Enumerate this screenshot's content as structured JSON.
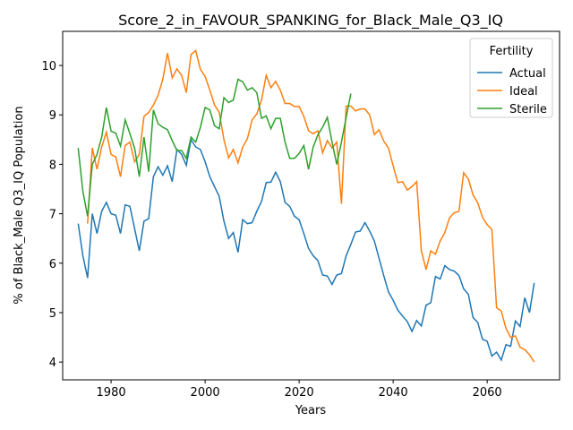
{
  "chart_data": {
    "type": "line",
    "title": "Score_2_in_FAVOUR_SPANKING_for_Black_Male_Q3_IQ",
    "xlabel": "Years",
    "ylabel": "% of Black_Male Q3_IQ Population",
    "legend_title": "Fertility",
    "legend": "upper right",
    "grid": false,
    "x": [
      1973,
      1974,
      1975,
      1976,
      1977,
      1978,
      1979,
      1980,
      1981,
      1982,
      1983,
      1984,
      1985,
      1986,
      1987,
      1988,
      1989,
      1990,
      1991,
      1992,
      1993,
      1994,
      1995,
      1996,
      1997,
      1998,
      1999,
      2000,
      2001,
      2002,
      2003,
      2004,
      2005,
      2006,
      2007,
      2008,
      2009,
      2010,
      2011,
      2012,
      2013,
      2014,
      2015,
      2016,
      2017,
      2018,
      2019,
      2020,
      2021,
      2022,
      2023,
      2024,
      2025,
      2026,
      2027,
      2028,
      2029,
      2030,
      2031,
      2032,
      2033,
      2034,
      2035,
      2036,
      2037,
      2038,
      2039,
      2040,
      2041,
      2042,
      2043,
      2044,
      2045,
      2046,
      2047,
      2048,
      2049,
      2050,
      2051,
      2052,
      2053,
      2054,
      2055,
      2056,
      2057,
      2058,
      2059,
      2060,
      2061,
      2062,
      2063,
      2064,
      2065,
      2066,
      2067,
      2068,
      2069,
      2070
    ],
    "series": [
      {
        "name": "Actual",
        "color": "#1f77b4",
        "values": [
          6.8,
          6.15,
          5.7,
          7.0,
          6.6,
          7.05,
          7.23,
          7.0,
          6.97,
          6.6,
          7.18,
          7.15,
          6.7,
          6.25,
          6.85,
          6.9,
          7.75,
          7.95,
          7.78,
          7.97,
          7.65,
          8.3,
          8.2,
          7.98,
          8.5,
          8.35,
          8.3,
          8.05,
          7.75,
          7.55,
          7.35,
          6.85,
          6.5,
          6.62,
          6.22,
          6.88,
          6.8,
          6.82,
          7.05,
          7.25,
          7.63,
          7.64,
          7.84,
          7.65,
          7.23,
          7.15,
          6.95,
          6.88,
          6.6,
          6.3,
          6.15,
          6.05,
          5.76,
          5.74,
          5.57,
          5.76,
          5.79,
          6.15,
          6.38,
          6.63,
          6.65,
          6.82,
          6.65,
          6.45,
          6.1,
          5.75,
          5.42,
          5.25,
          5.05,
          4.93,
          4.82,
          4.62,
          4.84,
          4.73,
          5.15,
          5.2,
          5.73,
          5.68,
          5.95,
          5.87,
          5.84,
          5.75,
          5.48,
          5.37,
          4.9,
          4.8,
          4.46,
          4.42,
          4.12,
          4.2,
          4.04,
          4.35,
          4.32,
          4.83,
          4.72,
          5.3,
          5.0,
          5.6
        ]
      },
      {
        "name": "Ideal",
        "color": "#ff7f0e",
        "values": [
          null,
          null,
          6.8,
          8.33,
          7.9,
          8.35,
          8.65,
          8.2,
          8.15,
          7.75,
          8.38,
          8.45,
          8.05,
          8.2,
          8.97,
          9.05,
          9.2,
          9.4,
          9.72,
          10.25,
          9.75,
          9.93,
          9.8,
          9.45,
          10.22,
          10.3,
          9.92,
          9.78,
          9.5,
          9.2,
          9.05,
          8.5,
          8.13,
          8.3,
          8.03,
          8.35,
          8.52,
          8.9,
          9.02,
          9.3,
          9.8,
          9.55,
          9.68,
          9.5,
          9.23,
          9.23,
          9.17,
          9.17,
          8.97,
          8.68,
          8.62,
          8.68,
          8.23,
          8.48,
          8.33,
          8.45,
          7.2,
          9.18,
          9.18,
          9.08,
          9.12,
          9.12,
          9.0,
          8.6,
          8.7,
          8.47,
          8.33,
          7.97,
          7.63,
          7.65,
          7.48,
          7.55,
          7.65,
          6.25,
          5.87,
          6.25,
          6.18,
          6.45,
          6.62,
          6.92,
          7.02,
          7.05,
          7.83,
          7.7,
          7.38,
          7.22,
          6.93,
          6.78,
          6.68,
          5.1,
          5.03,
          4.68,
          4.5,
          4.53,
          4.3,
          4.25,
          4.15,
          4.0
        ]
      },
      {
        "name": "Sterile",
        "color": "#2ca02c",
        "values": [
          8.33,
          7.45,
          6.95,
          8.0,
          8.2,
          8.55,
          9.15,
          8.67,
          8.63,
          8.37,
          8.9,
          8.62,
          8.33,
          7.75,
          8.55,
          7.85,
          9.1,
          8.82,
          8.75,
          8.7,
          8.48,
          8.28,
          8.28,
          8.12,
          8.55,
          8.45,
          8.75,
          9.15,
          9.1,
          8.78,
          8.72,
          9.35,
          9.25,
          9.3,
          9.72,
          9.67,
          9.5,
          9.55,
          9.45,
          8.93,
          8.98,
          8.72,
          8.93,
          8.93,
          8.45,
          8.12,
          8.12,
          8.22,
          8.38,
          7.9,
          8.35,
          8.6,
          8.75,
          8.95,
          8.45,
          8.0,
          8.45,
          8.95,
          9.43,
          null,
          null,
          null,
          null,
          null,
          null,
          null,
          null,
          null,
          null,
          null,
          null,
          null,
          null,
          null,
          null,
          null,
          null,
          null,
          null,
          null,
          null,
          null,
          null,
          null,
          null,
          null,
          null,
          null,
          null,
          null,
          null,
          null,
          null,
          null,
          null,
          null,
          null,
          null
        ]
      }
    ],
    "xlim": [
      1969.7,
      2075.4
    ],
    "xticks": [
      1980,
      2000,
      2020,
      2040,
      2060
    ],
    "ylim": [
      3.64,
      10.69
    ],
    "yticks": [
      4,
      5,
      6,
      7,
      8,
      9,
      10
    ]
  }
}
